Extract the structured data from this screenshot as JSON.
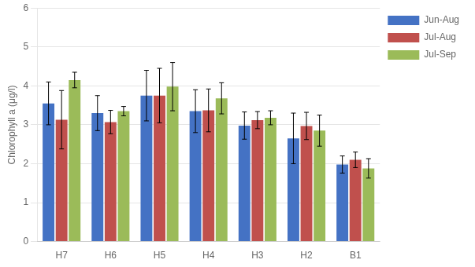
{
  "chart_data": {
    "type": "bar",
    "categories": [
      "H7",
      "H6",
      "H5",
      "H4",
      "H3",
      "H2",
      "B1"
    ],
    "series": [
      {
        "name": "Jun-Aug",
        "color": "#4472c4",
        "values": [
          3.55,
          3.3,
          3.75,
          3.35,
          2.98,
          2.65,
          1.98
        ],
        "errors": [
          0.55,
          0.45,
          0.65,
          0.55,
          0.35,
          0.65,
          0.22
        ]
      },
      {
        "name": "Jul-Aug",
        "color": "#c0504d",
        "values": [
          3.13,
          3.07,
          3.75,
          3.37,
          3.12,
          2.97,
          2.1
        ],
        "errors": [
          0.75,
          0.3,
          0.7,
          0.55,
          0.22,
          0.35,
          0.2
        ]
      },
      {
        "name": "Jul-Sep",
        "color": "#9bbb59",
        "values": [
          4.15,
          3.35,
          3.98,
          3.68,
          3.18,
          2.85,
          1.88
        ],
        "errors": [
          0.2,
          0.12,
          0.62,
          0.4,
          0.18,
          0.4,
          0.25
        ]
      }
    ],
    "ylabel": "Chlorophyll a (μg/l)",
    "ylim": [
      0,
      6
    ],
    "yticks": [
      0,
      1,
      2,
      3,
      4,
      5,
      6
    ],
    "grid": true,
    "legend": "right"
  }
}
